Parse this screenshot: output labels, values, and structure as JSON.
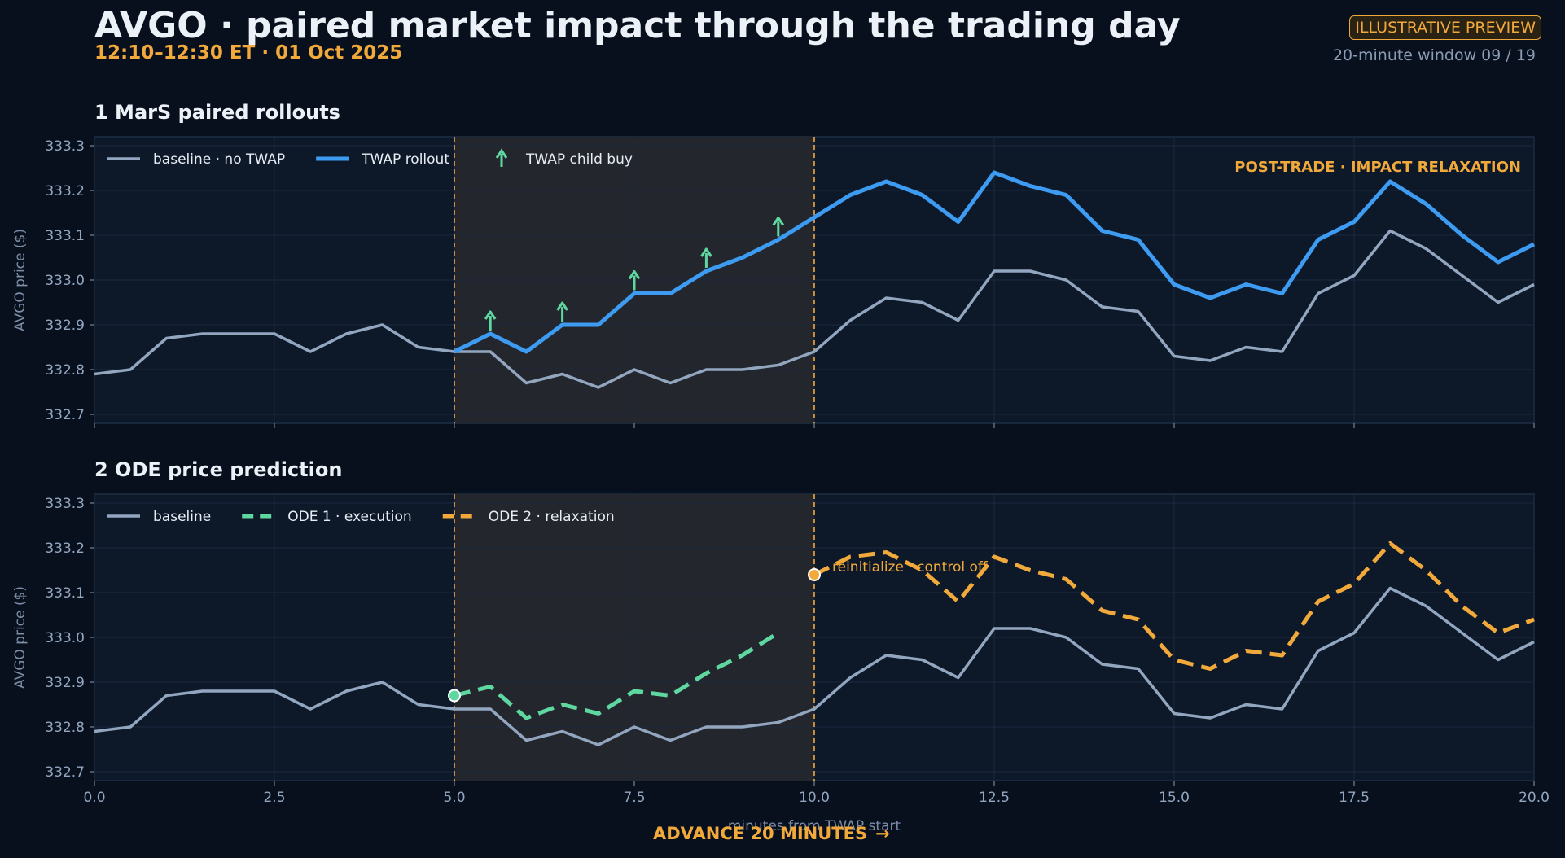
{
  "header": {
    "title": "AVGO · paired market impact through the trading day",
    "subtitle": "12:10–12:30 ET  ·  01 Oct 2025",
    "badge": "ILLUSTRATIVE PREVIEW",
    "window_label": "20-minute window 09 / 19"
  },
  "footer": {
    "advance_label": "ADVANCE 20 MINUTES",
    "advance_icon": "arrow-right-icon"
  },
  "colors": {
    "background": "#08101d",
    "panel": "#0d1829",
    "baseline": "#93a6c0",
    "twap": "#3d9bf2",
    "child_buy": "#5fd7a0",
    "ode1": "#5fd7a0",
    "ode2": "#f2a93b",
    "accent": "#f2a93b"
  },
  "chart_data": [
    {
      "type": "line",
      "panel_title": "1  MarS paired rollouts",
      "xlabel": "",
      "ylabel": "AVGO price ($)",
      "xlim": [
        0,
        20
      ],
      "ylim": [
        332.68,
        333.32
      ],
      "xticks": [
        0,
        2.5,
        5,
        7.5,
        10,
        12.5,
        15,
        17.5,
        20
      ],
      "yticks": [
        332.7,
        332.8,
        332.9,
        333.0,
        333.1,
        333.2,
        333.3
      ],
      "show_xtick_labels": false,
      "grid": true,
      "legend_position": "top-left",
      "shaded_region": [
        5,
        10
      ],
      "annotation": "POST-TRADE · IMPACT RELAXATION",
      "series": [
        {
          "name": "baseline · no TWAP",
          "color": "#93a6c0",
          "style": "solid",
          "x": [
            0,
            0.5,
            1,
            1.5,
            2,
            2.5,
            3,
            3.5,
            4,
            4.5,
            5,
            5.5,
            6,
            6.5,
            7,
            7.5,
            8,
            8.5,
            9,
            9.5,
            10,
            10.5,
            11,
            11.5,
            12,
            12.5,
            13,
            13.5,
            14,
            14.5,
            15,
            15.5,
            16,
            16.5,
            17,
            17.5,
            18,
            18.5,
            19,
            19.5,
            20
          ],
          "y": [
            332.79,
            332.8,
            332.87,
            332.88,
            332.88,
            332.88,
            332.84,
            332.88,
            332.9,
            332.85,
            332.84,
            332.84,
            332.77,
            332.79,
            332.76,
            332.8,
            332.77,
            332.8,
            332.8,
            332.81,
            332.84,
            332.91,
            332.96,
            332.95,
            332.91,
            333.02,
            333.02,
            333.0,
            332.94,
            332.93,
            332.83,
            332.82,
            332.85,
            332.84,
            332.97,
            333.01,
            333.11,
            333.07,
            333.01,
            332.95,
            332.99
          ]
        },
        {
          "name": "TWAP rollout",
          "color": "#3d9bf2",
          "style": "thick",
          "x": [
            5,
            5.5,
            6,
            6.5,
            7,
            7.5,
            8,
            8.5,
            9,
            9.5,
            10,
            10.5,
            11,
            11.5,
            12,
            12.5,
            13,
            13.5,
            14,
            14.5,
            15,
            15.5,
            16,
            16.5,
            17,
            17.5,
            18,
            18.5,
            19,
            19.5,
            20
          ],
          "y": [
            332.84,
            332.88,
            332.84,
            332.9,
            332.9,
            332.97,
            332.97,
            333.02,
            333.05,
            333.09,
            333.14,
            333.19,
            333.22,
            333.19,
            333.13,
            333.24,
            333.21,
            333.19,
            333.11,
            333.09,
            332.99,
            332.96,
            332.99,
            332.97,
            333.09,
            333.13,
            333.22,
            333.17,
            333.1,
            333.04,
            333.08
          ]
        },
        {
          "name": "TWAP child buy",
          "color": "#5fd7a0",
          "style": "arrow-markers",
          "x": [
            5.5,
            6.5,
            7.5,
            8.5,
            9.5
          ],
          "y": [
            332.88,
            332.9,
            332.97,
            333.02,
            333.09
          ]
        }
      ]
    },
    {
      "type": "line",
      "panel_title": "2  ODE price prediction",
      "xlabel": "minutes from TWAP start",
      "ylabel": "AVGO price ($)",
      "xlim": [
        0,
        20
      ],
      "ylim": [
        332.68,
        333.32
      ],
      "xticks": [
        0,
        2.5,
        5,
        7.5,
        10,
        12.5,
        15,
        17.5,
        20
      ],
      "xtick_labels": [
        "0.0",
        "2.5",
        "5.0",
        "7.5",
        "10.0",
        "12.5",
        "15.0",
        "17.5",
        "20.0"
      ],
      "yticks": [
        332.7,
        332.8,
        332.9,
        333.0,
        333.1,
        333.2,
        333.3
      ],
      "show_xtick_labels": true,
      "grid": true,
      "legend_position": "top-left",
      "shaded_region": [
        5,
        10
      ],
      "annotation": "reinitialize · control off",
      "series": [
        {
          "name": "baseline",
          "color": "#93a6c0",
          "style": "solid",
          "x": [
            0,
            0.5,
            1,
            1.5,
            2,
            2.5,
            3,
            3.5,
            4,
            4.5,
            5,
            5.5,
            6,
            6.5,
            7,
            7.5,
            8,
            8.5,
            9,
            9.5,
            10,
            10.5,
            11,
            11.5,
            12,
            12.5,
            13,
            13.5,
            14,
            14.5,
            15,
            15.5,
            16,
            16.5,
            17,
            17.5,
            18,
            18.5,
            19,
            19.5,
            20
          ],
          "y": [
            332.79,
            332.8,
            332.87,
            332.88,
            332.88,
            332.88,
            332.84,
            332.88,
            332.9,
            332.85,
            332.84,
            332.84,
            332.77,
            332.79,
            332.76,
            332.8,
            332.77,
            332.8,
            332.8,
            332.81,
            332.84,
            332.91,
            332.96,
            332.95,
            332.91,
            333.02,
            333.02,
            333.0,
            332.94,
            332.93,
            332.83,
            332.82,
            332.85,
            332.84,
            332.97,
            333.01,
            333.11,
            333.07,
            333.01,
            332.95,
            332.99
          ]
        },
        {
          "name": "ODE 1 · execution",
          "color": "#5fd7a0",
          "style": "dashed",
          "x": [
            5,
            5.5,
            6,
            6.5,
            7,
            7.5,
            8,
            8.5,
            9,
            9.5
          ],
          "y": [
            332.87,
            332.89,
            332.82,
            332.85,
            332.83,
            332.88,
            332.87,
            332.92,
            332.96,
            333.01
          ]
        },
        {
          "name": "ODE 2 · relaxation",
          "color": "#f2a93b",
          "style": "dashed",
          "x": [
            10,
            10.5,
            11,
            11.5,
            12,
            12.5,
            13,
            13.5,
            14,
            14.5,
            15,
            15.5,
            16,
            16.5,
            17,
            17.5,
            18,
            18.5,
            19,
            19.5,
            20
          ],
          "y": [
            333.14,
            333.18,
            333.19,
            333.15,
            333.08,
            333.18,
            333.15,
            333.13,
            333.06,
            333.04,
            332.95,
            332.93,
            332.97,
            332.96,
            333.08,
            333.12,
            333.21,
            333.15,
            333.07,
            333.01,
            333.04
          ]
        }
      ],
      "markers": [
        {
          "x": 5,
          "y": 332.87,
          "color": "#5fd7a0"
        },
        {
          "x": 10,
          "y": 333.14,
          "color": "#f2a93b"
        }
      ]
    }
  ]
}
